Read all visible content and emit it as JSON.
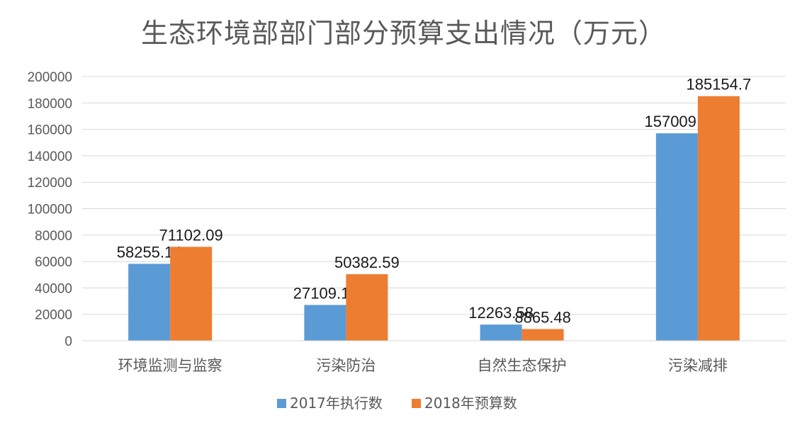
{
  "chart_data": {
    "type": "bar",
    "title": "生态环境部部门部分预算支出情况（万元）",
    "categories": [
      "环境监测与监察",
      "污染防治",
      "自然生态保护",
      "污染减排"
    ],
    "series": [
      {
        "name": "2017年执行数",
        "color": "#5B9BD5",
        "values": [
          58255.14,
          27109.11,
          12263.58,
          157009.2
        ],
        "labels": [
          "58255.14",
          "27109.11",
          "12263.58",
          "157009.2"
        ]
      },
      {
        "name": "2018年预算数",
        "color": "#ED7D31",
        "values": [
          71102.09,
          50382.59,
          8865.48,
          185154.7
        ],
        "labels": [
          "71102.09",
          "50382.59",
          "8865.48",
          "185154.7"
        ]
      }
    ],
    "ylim": [
      0,
      200000
    ],
    "yticks": [
      0,
      20000,
      40000,
      60000,
      80000,
      100000,
      120000,
      140000,
      160000,
      180000,
      200000
    ],
    "ytick_labels": [
      "0",
      "20000",
      "40000",
      "60000",
      "80000",
      "100000",
      "120000",
      "140000",
      "160000",
      "180000",
      "200000"
    ],
    "grid": true,
    "legend_position": "bottom"
  }
}
